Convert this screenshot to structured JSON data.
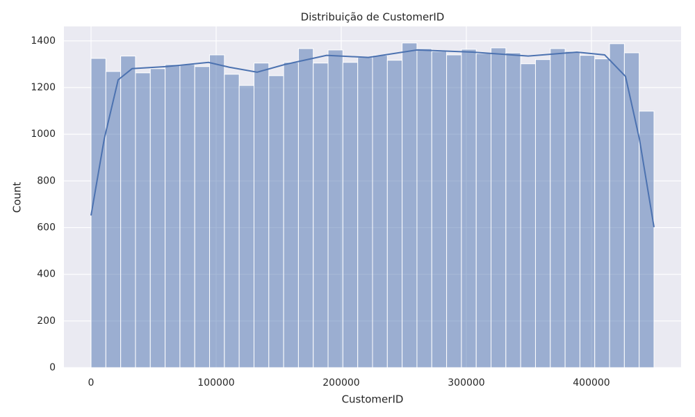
{
  "chart_data": {
    "type": "histogram",
    "title": "Distribuição de CustomerID",
    "x_label": "CustomerID",
    "y_label": "Count",
    "bins": [
      0,
      11842,
      23684,
      35526,
      47368,
      59211,
      71053,
      82895,
      94737,
      106579,
      118421,
      130263,
      142105,
      153947,
      165789,
      177632,
      189474,
      201316,
      213158,
      225000,
      236842,
      248684,
      260526,
      272368,
      284211,
      296053,
      307895,
      319737,
      331579,
      343421,
      355263,
      367105,
      378947,
      390789,
      402632,
      414474,
      426316,
      438158,
      450000
    ],
    "values": [
      1325,
      1269,
      1335,
      1263,
      1281,
      1299,
      1299,
      1290,
      1340,
      1257,
      1209,
      1305,
      1251,
      1308,
      1367,
      1305,
      1361,
      1308,
      1329,
      1338,
      1317,
      1391,
      1367,
      1355,
      1340,
      1364,
      1346,
      1370,
      1349,
      1302,
      1320,
      1367,
      1355,
      1338,
      1323,
      1388,
      1349,
      1099
    ],
    "color": "#4c72b0",
    "kde": {
      "x": [
        0,
        10556,
        21667,
        32778,
        60556,
        93889,
        110556,
        132778,
        155000,
        188333,
        221667,
        260556,
        305000,
        349444,
        388333,
        410556,
        427222,
        438333,
        450000
      ],
      "values": [
        652,
        980,
        1233,
        1281,
        1290,
        1308,
        1287,
        1266,
        1299,
        1338,
        1329,
        1361,
        1352,
        1335,
        1352,
        1340,
        1248,
        980,
        602
      ]
    },
    "xlim": [
      -21667,
      471667
    ],
    "ylim": [
      0,
      1462
    ],
    "xticks": [
      0,
      100000,
      200000,
      300000,
      400000
    ],
    "yticks": [
      0,
      200,
      400,
      600,
      800,
      1000,
      1200,
      1400
    ],
    "grid": true
  }
}
